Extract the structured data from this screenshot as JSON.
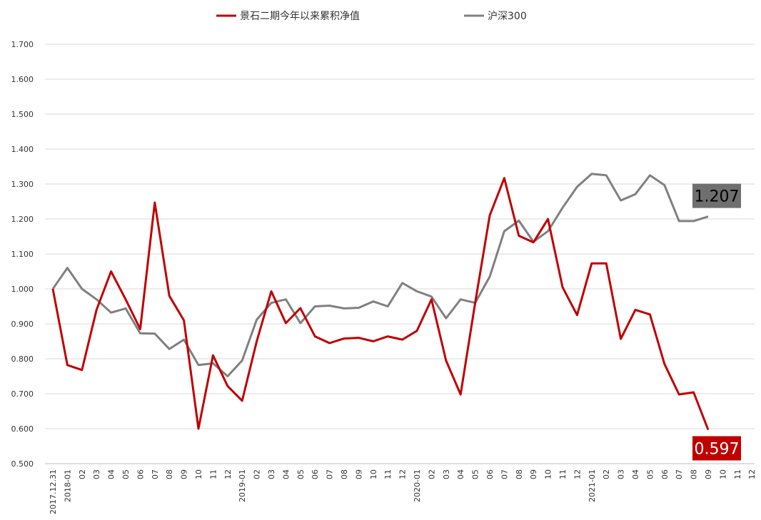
{
  "chart_data": {
    "type": "line",
    "title": "",
    "xlabel": "",
    "ylabel": "",
    "ylim": [
      0.5,
      1.7
    ],
    "yticks": [
      "0.500",
      "0.600",
      "0.700",
      "0.800",
      "0.900",
      "1.000",
      "1.100",
      "1.200",
      "1.300",
      "1.400",
      "1.500",
      "1.600",
      "1.700"
    ],
    "grid": true,
    "legend": "top-center",
    "categories": [
      "2017.12.31",
      "2018-01",
      "02",
      "03",
      "04",
      "05",
      "06",
      "07",
      "08",
      "09",
      "10",
      "11",
      "12",
      "2019-01",
      "02",
      "03",
      "04",
      "05",
      "06",
      "07",
      "08",
      "09",
      "10",
      "11",
      "12",
      "2020-01",
      "02",
      "03",
      "04",
      "05",
      "06",
      "07",
      "08",
      "09",
      "10",
      "11",
      "12",
      "2021-01",
      "02",
      "03",
      "04",
      "05",
      "06",
      "07",
      "08",
      "09",
      "10",
      "11",
      "12"
    ],
    "series": [
      {
        "name": "景石二期今年以来累积净值",
        "color": "#c00000",
        "values": [
          1.0,
          0.782,
          0.768,
          0.94,
          1.05,
          0.97,
          0.885,
          1.247,
          0.98,
          0.91,
          0.6,
          0.81,
          0.722,
          0.68,
          0.85,
          0.993,
          0.902,
          0.945,
          0.864,
          0.845,
          0.858,
          0.86,
          0.85,
          0.864,
          0.855,
          0.88,
          0.97,
          0.795,
          0.698,
          0.96,
          1.21,
          1.317,
          1.152,
          1.133,
          1.2,
          1.005,
          0.925,
          1.073,
          1.073,
          0.857,
          0.94,
          0.927,
          0.785,
          0.698,
          0.704,
          0.597,
          null,
          null,
          null
        ]
      },
      {
        "name": "沪深300",
        "color": "#808080",
        "values": [
          1.0,
          1.06,
          1.0,
          0.97,
          0.932,
          0.944,
          0.873,
          0.872,
          0.828,
          0.855,
          0.782,
          0.787,
          0.75,
          0.795,
          0.912,
          0.96,
          0.97,
          0.902,
          0.95,
          0.952,
          0.944,
          0.946,
          0.964,
          0.95,
          1.017,
          0.993,
          0.978,
          0.916,
          0.97,
          0.96,
          1.035,
          1.165,
          1.195,
          1.135,
          1.165,
          1.232,
          1.292,
          1.329,
          1.325,
          1.253,
          1.271,
          1.325,
          1.297,
          1.194,
          1.194,
          1.207,
          null,
          null,
          null
        ]
      }
    ],
    "callouts": [
      {
        "series": "沪深300",
        "text": "1.207",
        "bg": "#6f6f6f",
        "fg": "#000000"
      },
      {
        "series": "景石二期今年以来累积净值",
        "text": "0.597",
        "bg": "#c00000",
        "fg": "#ffffff"
      }
    ]
  }
}
